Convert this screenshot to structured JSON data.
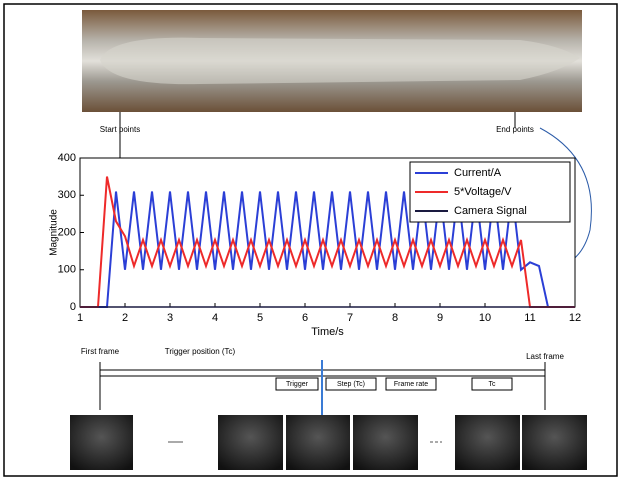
{
  "chart_data": {
    "type": "line",
    "xlabel": "Time/s",
    "ylabel": "Magnitude",
    "x": [
      1.0,
      1.2,
      1.4,
      1.6,
      1.8,
      2.0,
      2.2,
      2.4,
      2.6,
      2.8,
      3.0,
      3.2,
      3.4,
      3.6,
      3.8,
      4.0,
      4.2,
      4.4,
      4.6,
      4.8,
      5.0,
      5.2,
      5.4,
      5.6,
      5.8,
      6.0,
      6.2,
      6.4,
      6.6,
      6.8,
      7.0,
      7.2,
      7.4,
      7.6,
      7.8,
      8.0,
      8.2,
      8.4,
      8.6,
      8.8,
      9.0,
      9.2,
      9.4,
      9.6,
      9.8,
      10.0,
      10.2,
      10.4,
      10.6,
      10.8,
      11.0,
      11.2,
      11.4,
      11.6,
      11.8,
      12.0
    ],
    "series": [
      {
        "name": "Current/A",
        "color": "#2b3fd6",
        "values": [
          0,
          0,
          0,
          0,
          310,
          100,
          310,
          100,
          310,
          100,
          310,
          100,
          310,
          100,
          310,
          100,
          310,
          100,
          310,
          100,
          310,
          100,
          310,
          100,
          310,
          100,
          310,
          100,
          310,
          100,
          310,
          100,
          310,
          100,
          310,
          100,
          310,
          100,
          310,
          100,
          310,
          100,
          310,
          100,
          310,
          100,
          310,
          100,
          310,
          100,
          120,
          110,
          0,
          0,
          0,
          0
        ]
      },
      {
        "name": "5*Voltage/V",
        "color": "#ee2a2a",
        "values": [
          0,
          0,
          0,
          350,
          230,
          190,
          110,
          180,
          110,
          180,
          110,
          180,
          110,
          180,
          110,
          180,
          110,
          180,
          110,
          180,
          110,
          180,
          110,
          180,
          110,
          180,
          110,
          180,
          110,
          180,
          110,
          180,
          110,
          180,
          110,
          180,
          110,
          180,
          110,
          180,
          110,
          180,
          110,
          180,
          110,
          180,
          110,
          180,
          110,
          180,
          0,
          0,
          0,
          0,
          0,
          0
        ]
      },
      {
        "name": "Camera Signal",
        "color": "#1a1a40",
        "values": [
          0,
          0,
          0,
          0,
          0,
          0,
          0,
          0,
          0,
          0,
          0,
          0,
          0,
          0,
          0,
          0,
          0,
          0,
          0,
          0,
          0,
          0,
          0,
          0,
          0,
          0,
          0,
          0,
          0,
          0,
          0,
          0,
          0,
          0,
          0,
          0,
          0,
          0,
          0,
          0,
          0,
          0,
          0,
          0,
          0,
          0,
          0,
          0,
          0,
          0,
          0,
          0,
          0,
          0,
          0,
          0
        ]
      }
    ],
    "xlim": [
      1,
      12
    ],
    "xticks": [
      1,
      2,
      3,
      4,
      5,
      6,
      7,
      8,
      9,
      10,
      11,
      12
    ],
    "ylim": [
      0,
      400
    ],
    "yticks": [
      0,
      100,
      200,
      300,
      400
    ],
    "legend": "upper-right"
  },
  "photo": {
    "start_label": "Start points",
    "end_label": "End points"
  },
  "timeline": {
    "first_frame": "First frame",
    "trigger_position": "Trigger position (Tc)",
    "last_frame": "Last frame",
    "boxes": [
      "Trigger",
      "Step (Tc)",
      "Frame rate",
      "Tc"
    ]
  }
}
